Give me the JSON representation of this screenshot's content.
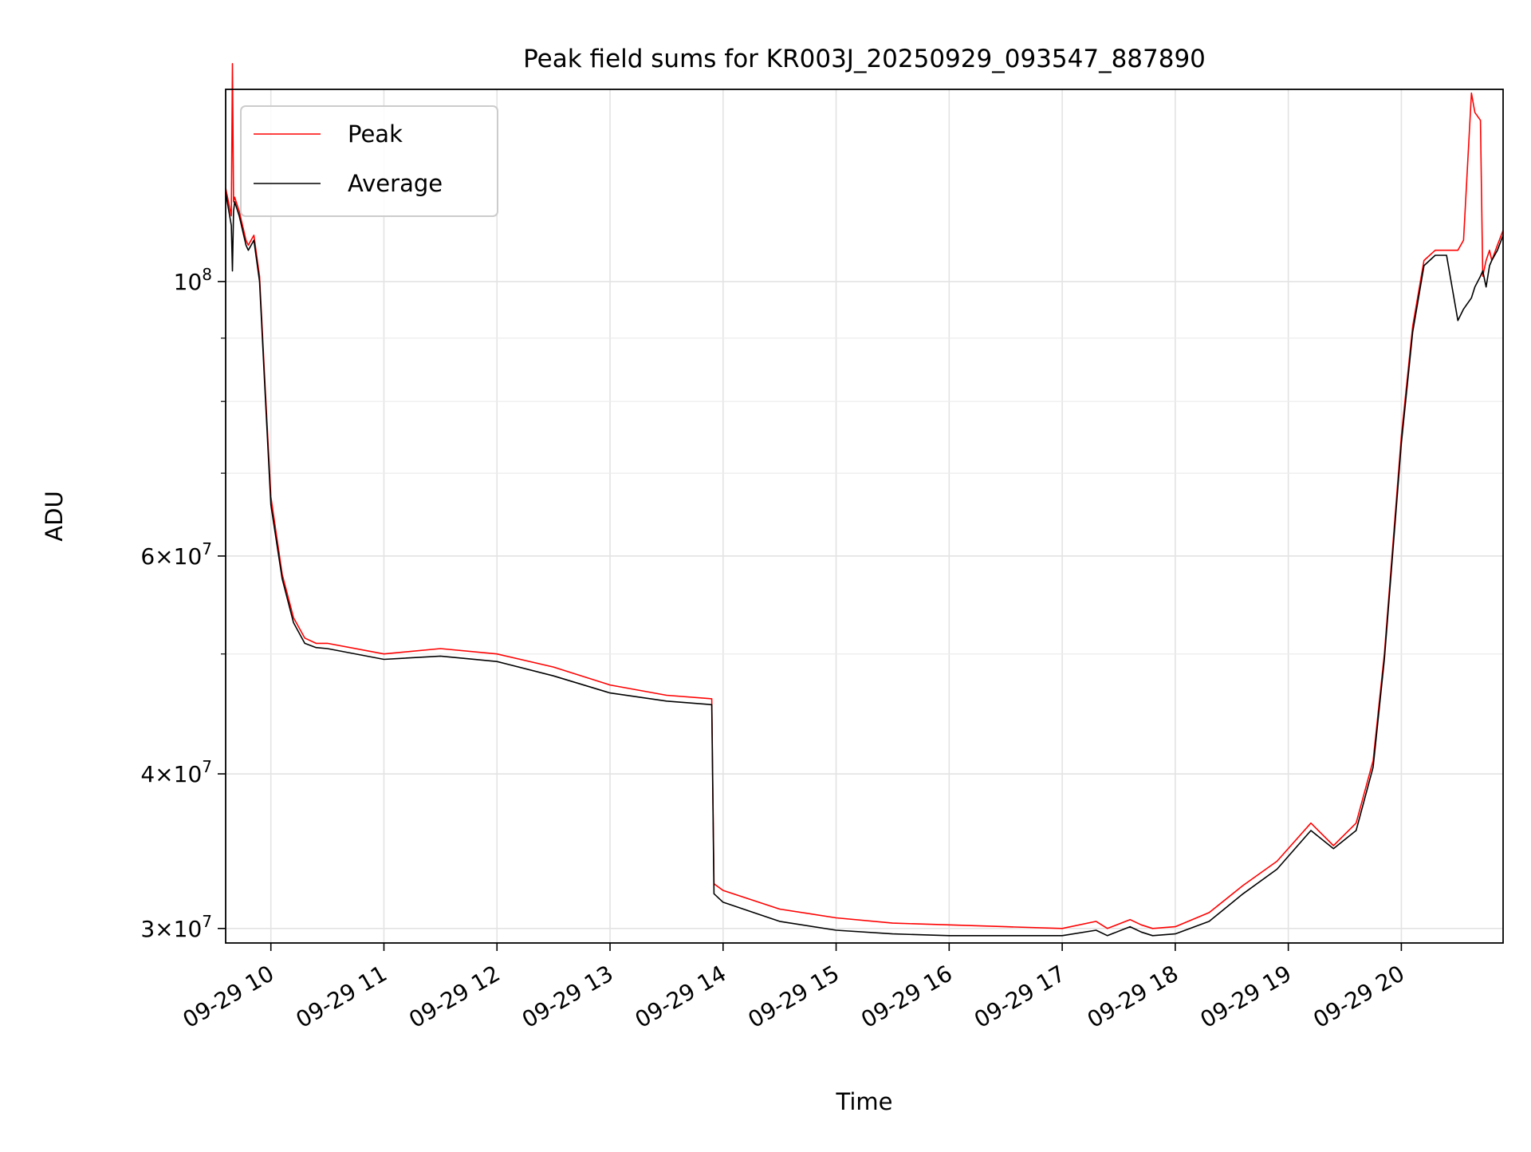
{
  "chart_data": {
    "type": "line",
    "title": "Peak field sums for KR003J_20250929_093547_887890",
    "xlabel": "Time",
    "ylabel": "ADU",
    "x_unit": "hours of day, 2025-09-29 (local)",
    "xlim": [
      9.6,
      20.9
    ],
    "ylim": [
      29200000,
      143000000
    ],
    "y_scale": "log",
    "grid": true,
    "legend_position": "top-left",
    "x_ticks": [
      {
        "value": 10,
        "label": "09-29 10"
      },
      {
        "value": 11,
        "label": "09-29 11"
      },
      {
        "value": 12,
        "label": "09-29 12"
      },
      {
        "value": 13,
        "label": "09-29 13"
      },
      {
        "value": 14,
        "label": "09-29 14"
      },
      {
        "value": 15,
        "label": "09-29 15"
      },
      {
        "value": 16,
        "label": "09-29 16"
      },
      {
        "value": 17,
        "label": "09-29 17"
      },
      {
        "value": 18,
        "label": "09-29 18"
      },
      {
        "value": 19,
        "label": "09-29 19"
      },
      {
        "value": 20,
        "label": "09-29 20"
      }
    ],
    "y_ticks": [
      {
        "value": 30000000,
        "mantissa": "3",
        "exp": "7"
      },
      {
        "value": 40000000,
        "mantissa": "4",
        "exp": "7"
      },
      {
        "value": 60000000,
        "mantissa": "6",
        "exp": "7"
      },
      {
        "value": 100000000,
        "mantissa": "",
        "exp": "8"
      }
    ],
    "y_minor_ticks": [
      50000000,
      70000000,
      80000000,
      90000000
    ],
    "series": [
      {
        "name": "Peak",
        "color": "#ff0000",
        "x": [
          9.6,
          9.65,
          9.66,
          9.67,
          9.68,
          9.72,
          9.78,
          9.8,
          9.85,
          9.9,
          9.95,
          10.0,
          10.1,
          10.2,
          10.3,
          10.4,
          10.5,
          11.0,
          11.5,
          12.0,
          12.5,
          13.0,
          13.5,
          13.9,
          13.92,
          14.0,
          14.5,
          15.0,
          15.5,
          16.0,
          16.5,
          17.0,
          17.3,
          17.4,
          17.6,
          17.7,
          17.8,
          18.0,
          18.3,
          18.6,
          18.9,
          19.2,
          19.4,
          19.6,
          19.75,
          19.85,
          20.0,
          20.1,
          20.2,
          20.3,
          20.4,
          20.5,
          20.55,
          20.62,
          20.65,
          20.7,
          20.72,
          20.75,
          20.78,
          20.8,
          20.85,
          20.9
        ],
        "y": [
          119000000,
          113000000,
          150000000,
          116000000,
          117000000,
          114000000,
          108000000,
          107000000,
          109000000,
          101000000,
          82000000,
          67000000,
          58000000,
          53500000,
          51500000,
          51000000,
          51000000,
          50000000,
          50500000,
          50000000,
          48800000,
          47200000,
          46300000,
          46000000,
          32600000,
          32200000,
          31100000,
          30600000,
          30300000,
          30200000,
          30100000,
          30000000,
          30400000,
          30000000,
          30500000,
          30200000,
          30000000,
          30100000,
          30900000,
          32500000,
          34000000,
          36500000,
          35000000,
          36500000,
          41000000,
          50000000,
          75000000,
          92000000,
          104000000,
          106000000,
          106000000,
          106000000,
          108000000,
          142000000,
          137000000,
          135000000,
          101000000,
          104000000,
          106000000,
          104000000,
          107000000,
          110000000
        ]
      },
      {
        "name": "Average",
        "color": "#000000",
        "x": [
          9.6,
          9.65,
          9.66,
          9.67,
          9.68,
          9.72,
          9.78,
          9.8,
          9.85,
          9.9,
          9.95,
          10.0,
          10.1,
          10.2,
          10.3,
          10.4,
          10.5,
          11.0,
          11.5,
          12.0,
          12.5,
          13.0,
          13.5,
          13.9,
          13.92,
          14.0,
          14.5,
          15.0,
          15.5,
          16.0,
          16.5,
          17.0,
          17.3,
          17.4,
          17.6,
          17.7,
          17.8,
          18.0,
          18.3,
          18.6,
          18.9,
          19.2,
          19.4,
          19.6,
          19.75,
          19.85,
          20.0,
          20.1,
          20.2,
          20.3,
          20.4,
          20.5,
          20.55,
          20.62,
          20.65,
          20.7,
          20.72,
          20.75,
          20.78,
          20.8,
          20.85,
          20.9
        ],
        "y": [
          118000000,
          111000000,
          102000000,
          114000000,
          116000000,
          113000000,
          107000000,
          106000000,
          108000000,
          100000000,
          81000000,
          66000000,
          57500000,
          53000000,
          51000000,
          50600000,
          50500000,
          49500000,
          49800000,
          49300000,
          48000000,
          46500000,
          45800000,
          45500000,
          32000000,
          31500000,
          30400000,
          29900000,
          29700000,
          29600000,
          29600000,
          29600000,
          29900000,
          29600000,
          30100000,
          29800000,
          29600000,
          29700000,
          30400000,
          32000000,
          33500000,
          36000000,
          34800000,
          36000000,
          40500000,
          49500000,
          74000000,
          91000000,
          103000000,
          105000000,
          105000000,
          93000000,
          95000000,
          97000000,
          99000000,
          101000000,
          102000000,
          99000000,
          103000000,
          104000000,
          106000000,
          109000000
        ]
      }
    ]
  }
}
